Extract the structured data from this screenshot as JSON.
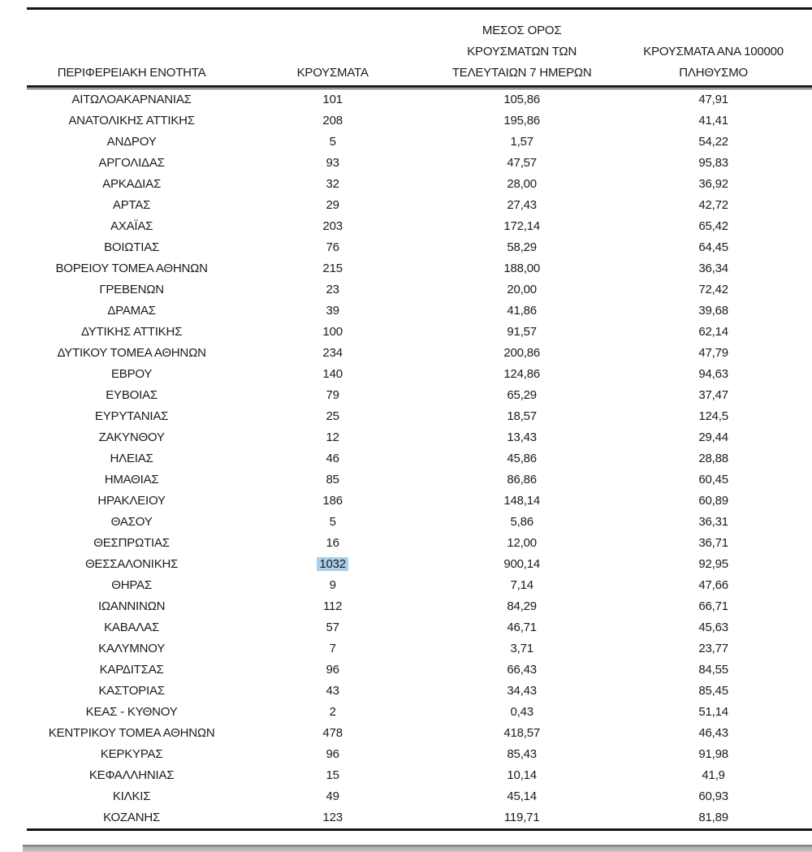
{
  "table": {
    "headers": [
      {
        "key": "region",
        "lines": [
          "ΠΕΡΙΦΕΡΕΙΑΚΗ ΕΝΟΤΗΤΑ"
        ]
      },
      {
        "key": "cases",
        "lines": [
          "ΚΡΟΥΣΜΑΤΑ"
        ]
      },
      {
        "key": "avg7",
        "lines": [
          "ΜΕΣΟΣ ΟΡΟΣ",
          "ΚΡΟΥΣΜΑΤΩΝ ΤΩΝ",
          "ΤΕΛΕΥΤΑΙΩΝ 7 ΗΜΕΡΩΝ"
        ]
      },
      {
        "key": "per100k",
        "lines": [
          "ΚΡΟΥΣΜΑΤΑ ΑΝΑ 100000",
          "ΠΛΗΘΥΣΜΟ"
        ]
      }
    ],
    "rows": [
      [
        "ΑΙΤΩΛΟΑΚΑΡΝΑΝΙΑΣ",
        "101",
        "105,86",
        "47,91"
      ],
      [
        "ΑΝΑΤΟΛΙΚΗΣ ΑΤΤΙΚΗΣ",
        "208",
        "195,86",
        "41,41"
      ],
      [
        "ΑΝΔΡΟΥ",
        "5",
        "1,57",
        "54,22"
      ],
      [
        "ΑΡΓΟΛΙΔΑΣ",
        "93",
        "47,57",
        "95,83"
      ],
      [
        "ΑΡΚΑΔΙΑΣ",
        "32",
        "28,00",
        "36,92"
      ],
      [
        "ΑΡΤΑΣ",
        "29",
        "27,43",
        "42,72"
      ],
      [
        "ΑΧΑΪΑΣ",
        "203",
        "172,14",
        "65,42"
      ],
      [
        "ΒΟΙΩΤΙΑΣ",
        "76",
        "58,29",
        "64,45"
      ],
      [
        "ΒΟΡΕΙΟΥ ΤΟΜΕΑ ΑΘΗΝΩΝ",
        "215",
        "188,00",
        "36,34"
      ],
      [
        "ΓΡΕΒΕΝΩΝ",
        "23",
        "20,00",
        "72,42"
      ],
      [
        "ΔΡΑΜΑΣ",
        "39",
        "41,86",
        "39,68"
      ],
      [
        "ΔΥΤΙΚΗΣ ΑΤΤΙΚΗΣ",
        "100",
        "91,57",
        "62,14"
      ],
      [
        "ΔΥΤΙΚΟΥ ΤΟΜΕΑ ΑΘΗΝΩΝ",
        "234",
        "200,86",
        "47,79"
      ],
      [
        "ΕΒΡΟΥ",
        "140",
        "124,86",
        "94,63"
      ],
      [
        "ΕΥΒΟΙΑΣ",
        "79",
        "65,29",
        "37,47"
      ],
      [
        "ΕΥΡΥΤΑΝΙΑΣ",
        "25",
        "18,57",
        "124,5"
      ],
      [
        "ΖΑΚΥΝΘΟΥ",
        "12",
        "13,43",
        "29,44"
      ],
      [
        "ΗΛΕΙΑΣ",
        "46",
        "45,86",
        "28,88"
      ],
      [
        "ΗΜΑΘΙΑΣ",
        "85",
        "86,86",
        "60,45"
      ],
      [
        "ΗΡΑΚΛΕΙΟΥ",
        "186",
        "148,14",
        "60,89"
      ],
      [
        "ΘΑΣΟΥ",
        "5",
        "5,86",
        "36,31"
      ],
      [
        "ΘΕΣΠΡΩΤΙΑΣ",
        "16",
        "12,00",
        "36,71"
      ],
      [
        "ΘΕΣΣΑΛΟΝΙΚΗΣ",
        "1032",
        "900,14",
        "92,95"
      ],
      [
        "ΘΗΡΑΣ",
        "9",
        "7,14",
        "47,66"
      ],
      [
        "ΙΩΑΝΝΙΝΩΝ",
        "112",
        "84,29",
        "66,71"
      ],
      [
        "ΚΑΒΑΛΑΣ",
        "57",
        "46,71",
        "45,63"
      ],
      [
        "ΚΑΛΥΜΝΟΥ",
        "7",
        "3,71",
        "23,77"
      ],
      [
        "ΚΑΡΔΙΤΣΑΣ",
        "96",
        "66,43",
        "84,55"
      ],
      [
        "ΚΑΣΤΟΡΙΑΣ",
        "43",
        "34,43",
        "85,45"
      ],
      [
        "ΚΕΑΣ - ΚΥΘΝΟΥ",
        "2",
        "0,43",
        "51,14"
      ],
      [
        "ΚΕΝΤΡΙΚΟΥ ΤΟΜΕΑ ΑΘΗΝΩΝ",
        "478",
        "418,57",
        "46,43"
      ],
      [
        "ΚΕΡΚΥΡΑΣ",
        "96",
        "85,43",
        "91,98"
      ],
      [
        "ΚΕΦΑΛΛΗΝΙΑΣ",
        "15",
        "10,14",
        "41,9"
      ],
      [
        "ΚΙΛΚΙΣ",
        "49",
        "45,14",
        "60,93"
      ],
      [
        "ΚΟΖΑΝΗΣ",
        "123",
        "119,71",
        "81,89"
      ]
    ],
    "highlight": {
      "row": 22,
      "col": 1
    }
  },
  "colors": {
    "selection_highlight": "#a9cfe9",
    "rule": "#141414",
    "divider_gray": "#b0b0b0",
    "text": "#1b1b1d"
  }
}
